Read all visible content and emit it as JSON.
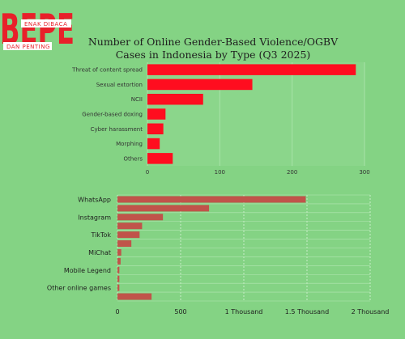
{
  "brand": {
    "name": "BEPE",
    "tagline_top": "ENAK DIBACA",
    "tagline_bottom": "DAN PENTING",
    "color": "#e8202a"
  },
  "chart_data": [
    {
      "type": "bar",
      "orientation": "horizontal",
      "title": "Number of Online Gender-Based Violence/OGBV Cases in Indonesia by Type (Q3 2025)",
      "categories": [
        "Threat of content spread",
        "Sexual extortion",
        "NCII",
        "Gender-based doxing",
        "Cyber harassment",
        "Morphing",
        "Others"
      ],
      "values": [
        288,
        145,
        77,
        25,
        22,
        17,
        35
      ],
      "xlim": [
        0,
        300
      ],
      "xticks": [
        "0",
        "100",
        "200",
        "300"
      ],
      "grid": true,
      "color": "#ff0d1f"
    },
    {
      "type": "bar",
      "orientation": "horizontal",
      "categories": [
        "WhatsApp",
        "",
        "Instagram",
        "",
        "TikTok",
        "",
        "MiChat",
        "",
        "Mobile Legend",
        "",
        "Other online games",
        ""
      ],
      "values": [
        1490,
        725,
        360,
        195,
        175,
        110,
        30,
        25,
        15,
        15,
        15,
        270
      ],
      "xlim": [
        0,
        2000
      ],
      "xticks": [
        "0",
        "500",
        "1 Thousand",
        "1.5 Thousand",
        "2 Thousand"
      ],
      "grid": true,
      "color": "#c0544a"
    }
  ]
}
